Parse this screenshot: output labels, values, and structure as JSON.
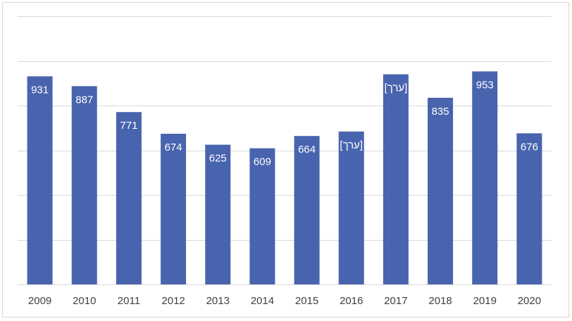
{
  "chart_data": {
    "type": "bar",
    "categories": [
      "2009",
      "2010",
      "2011",
      "2012",
      "2013",
      "2014",
      "2015",
      "2016",
      "2017",
      "2018",
      "2019",
      "2020"
    ],
    "values": [
      931,
      887,
      771,
      674,
      625,
      609,
      664,
      684,
      940,
      835,
      953,
      676
    ],
    "data_labels": [
      "931",
      "887",
      "771",
      "674",
      "625",
      "609",
      "664",
      "[ערך]",
      "[ערך]",
      "835",
      "953",
      "676"
    ],
    "title": "",
    "xlabel": "",
    "ylabel": "",
    "ylim": [
      0,
      1200
    ],
    "gridline_values": [
      0,
      200,
      400,
      600,
      800,
      1000,
      1200
    ],
    "grid": true,
    "legend": "none",
    "y_tick_labels_visible": false,
    "bar_color": "#4964ae",
    "label_color": "#ffffff",
    "tick_label_color": "#404040",
    "grid_color": "#d9d9d9"
  }
}
